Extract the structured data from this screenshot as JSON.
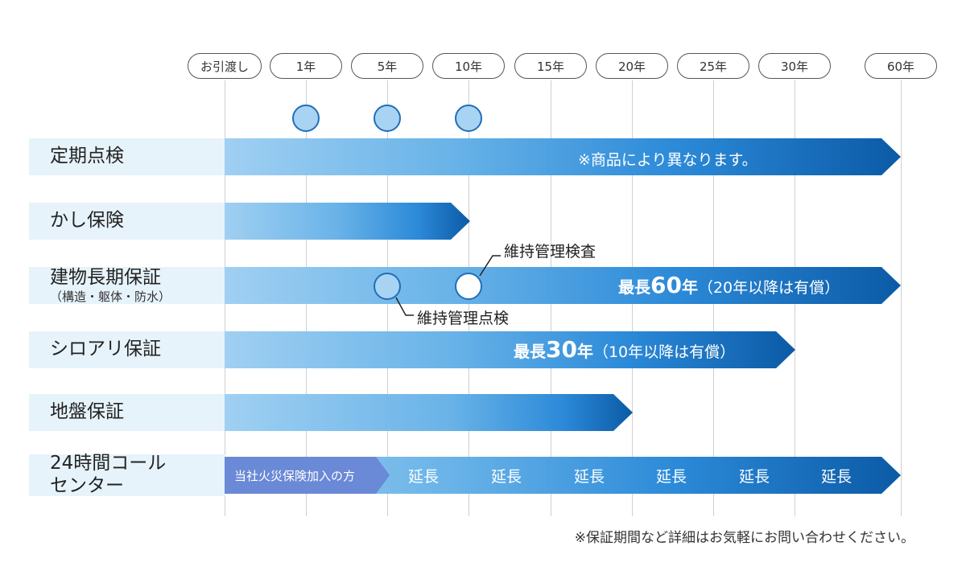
{
  "timeline": {
    "ticks": [
      "お引渡し",
      "1年",
      "5年",
      "10年",
      "15年",
      "20年",
      "25年",
      "30年",
      "60年"
    ]
  },
  "rows": [
    {
      "label": "定期点検"
    },
    {
      "label": "かし保険"
    },
    {
      "label": "建物長期保証",
      "sublabel": "（構造・躯体・防水）"
    },
    {
      "label": "シロアリ保証"
    },
    {
      "label": "地盤保証"
    },
    {
      "label": "24時間コール",
      "label2": "センター"
    }
  ],
  "bars": {
    "inspection_note": "※商品により異なります。",
    "long_term": {
      "prefix": "最長",
      "number": "60",
      "unit": "年",
      "note": "（20年以降は有償）"
    },
    "termite": {
      "prefix": "最長",
      "number": "30",
      "unit": "年",
      "note": "（10年以降は有償）"
    },
    "call_center": {
      "inner_label": "当社火災保険加入の方",
      "extensions": [
        "延長",
        "延長",
        "延長",
        "延長",
        "延長",
        "延長"
      ]
    }
  },
  "callouts": {
    "maintenance_inspection": "維持管理検査",
    "maintenance_check": "維持管理点検"
  },
  "footnote": "※保証期間など詳細はお気軽にお問い合わせください。",
  "colors": {
    "bar_light": "#a0d0f2",
    "bar_dark": "#0b5aa6",
    "label_bg": "#e7f3fb",
    "circle_fill": "#a9d3f2",
    "circle_stroke": "#1f6fba",
    "inner_label": "#6a89d6"
  }
}
